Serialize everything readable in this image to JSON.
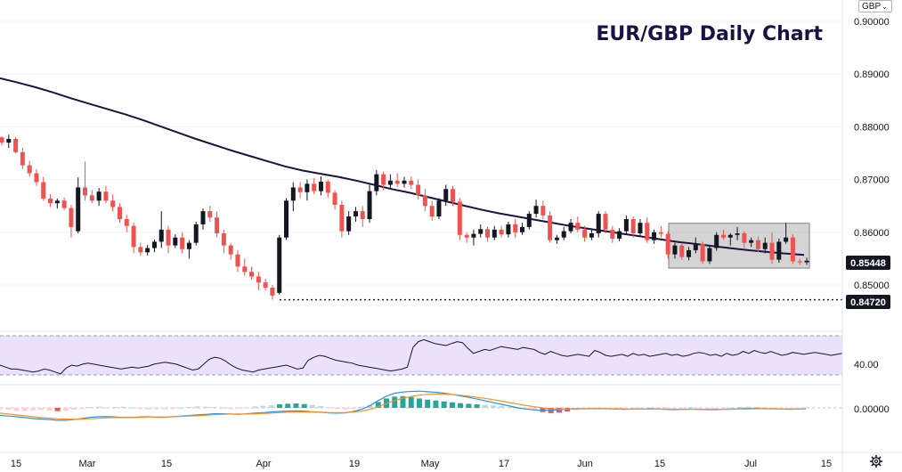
{
  "title": "EUR/GBP Daily Chart",
  "currency_select": "GBP",
  "chart_data": {
    "type": "candlestick",
    "title": "EUR/GBP Daily Chart",
    "y_axis": {
      "ticks": [
        "0.90000",
        "0.89000",
        "0.88000",
        "0.87000",
        "0.86000",
        "0.85000"
      ],
      "ylim": [
        0.8455,
        0.9015
      ]
    },
    "x_axis": {
      "labels": [
        "15",
        "Mar",
        "15",
        "Apr",
        "19",
        "May",
        "17",
        "Jun",
        "15",
        "Jul",
        "15"
      ]
    },
    "price_labels": {
      "last": "0.85448",
      "support": "0.84720"
    },
    "moving_average": {
      "name": "",
      "color": "#1f1240",
      "points": [
        [
          0,
          0.8892
        ],
        [
          20,
          0.8884
        ],
        [
          40,
          0.8875
        ],
        [
          60,
          0.8865
        ],
        [
          80,
          0.8854
        ],
        [
          100,
          0.8844
        ],
        [
          120,
          0.8834
        ],
        [
          140,
          0.8824
        ],
        [
          160,
          0.8813
        ],
        [
          180,
          0.8801
        ],
        [
          200,
          0.8789
        ],
        [
          220,
          0.8777
        ],
        [
          240,
          0.8766
        ],
        [
          260,
          0.8755
        ],
        [
          280,
          0.8745
        ],
        [
          300,
          0.8735
        ],
        [
          320,
          0.8725
        ],
        [
          340,
          0.8717
        ],
        [
          360,
          0.8711
        ],
        [
          380,
          0.8705
        ],
        [
          400,
          0.8698
        ],
        [
          420,
          0.869
        ],
        [
          440,
          0.8682
        ],
        [
          460,
          0.8675
        ],
        [
          480,
          0.8667
        ],
        [
          500,
          0.8659
        ],
        [
          520,
          0.8651
        ],
        [
          540,
          0.8643
        ],
        [
          560,
          0.8636
        ],
        [
          580,
          0.863
        ],
        [
          600,
          0.8624
        ],
        [
          620,
          0.8618
        ],
        [
          640,
          0.8612
        ],
        [
          660,
          0.8607
        ],
        [
          680,
          0.8602
        ],
        [
          700,
          0.8597
        ],
        [
          720,
          0.8592
        ],
        [
          740,
          0.8587
        ],
        [
          760,
          0.8582
        ],
        [
          780,
          0.8578
        ],
        [
          800,
          0.8574
        ],
        [
          820,
          0.857
        ],
        [
          840,
          0.8566
        ],
        [
          860,
          0.8563
        ],
        [
          880,
          0.856
        ],
        [
          903,
          0.8557
        ]
      ]
    },
    "candles": [
      [
        0.878,
        0.8782,
        0.8765,
        0.877
      ],
      [
        0.877,
        0.8785,
        0.876,
        0.8777
      ],
      [
        0.8777,
        0.878,
        0.875,
        0.8752
      ],
      [
        0.8752,
        0.876,
        0.872,
        0.8727
      ],
      [
        0.8727,
        0.8735,
        0.8705,
        0.8712
      ],
      [
        0.8712,
        0.872,
        0.8688,
        0.8695
      ],
      [
        0.8695,
        0.8705,
        0.866,
        0.8664
      ],
      [
        0.8664,
        0.8672,
        0.8648,
        0.8655
      ],
      [
        0.8655,
        0.8664,
        0.8645,
        0.866
      ],
      [
        0.866,
        0.8666,
        0.8642,
        0.8646
      ],
      [
        0.8646,
        0.8652,
        0.859,
        0.861
      ],
      [
        0.8602,
        0.8704,
        0.8598,
        0.8685
      ],
      [
        0.8685,
        0.8734,
        0.866,
        0.867
      ],
      [
        0.867,
        0.868,
        0.8655,
        0.866
      ],
      [
        0.866,
        0.8684,
        0.865,
        0.8677
      ],
      [
        0.8677,
        0.8688,
        0.8655,
        0.866
      ],
      [
        0.866,
        0.8672,
        0.864,
        0.8648
      ],
      [
        0.8648,
        0.8655,
        0.8618,
        0.8625
      ],
      [
        0.8625,
        0.8633,
        0.86,
        0.8612
      ],
      [
        0.8612,
        0.8618,
        0.856,
        0.8572
      ],
      [
        0.8572,
        0.858,
        0.8555,
        0.8562
      ],
      [
        0.8562,
        0.8576,
        0.8556,
        0.857
      ],
      [
        0.857,
        0.8586,
        0.8562,
        0.8582
      ],
      [
        0.8582,
        0.864,
        0.857,
        0.8605
      ],
      [
        0.8605,
        0.8612,
        0.856,
        0.8575
      ],
      [
        0.8575,
        0.8596,
        0.857,
        0.859
      ],
      [
        0.859,
        0.86,
        0.856,
        0.8568
      ],
      [
        0.8568,
        0.8585,
        0.855,
        0.858
      ],
      [
        0.858,
        0.862,
        0.8575,
        0.8615
      ],
      [
        0.8615,
        0.8645,
        0.8605,
        0.864
      ],
      [
        0.864,
        0.865,
        0.862,
        0.8628
      ],
      [
        0.8628,
        0.864,
        0.859,
        0.8598
      ],
      [
        0.8598,
        0.8605,
        0.856,
        0.8575
      ],
      [
        0.8575,
        0.858,
        0.8548,
        0.8558
      ],
      [
        0.8558,
        0.8566,
        0.8525,
        0.8535
      ],
      [
        0.8535,
        0.855,
        0.8518,
        0.8525
      ],
      [
        0.8525,
        0.8535,
        0.851,
        0.8516
      ],
      [
        0.8516,
        0.8525,
        0.849,
        0.8505
      ],
      [
        0.8505,
        0.8512,
        0.849,
        0.8495
      ],
      [
        0.8495,
        0.85,
        0.8472,
        0.848
      ],
      [
        0.8485,
        0.8595,
        0.8482,
        0.859
      ],
      [
        0.859,
        0.8665,
        0.8585,
        0.866
      ],
      [
        0.866,
        0.8695,
        0.864,
        0.8685
      ],
      [
        0.8685,
        0.8695,
        0.8665,
        0.8676
      ],
      [
        0.8676,
        0.87,
        0.866,
        0.8692
      ],
      [
        0.8692,
        0.8703,
        0.8672,
        0.8678
      ],
      [
        0.8678,
        0.8706,
        0.867,
        0.8696
      ],
      [
        0.8696,
        0.87,
        0.8665,
        0.8675
      ],
      [
        0.8675,
        0.868,
        0.8643,
        0.8652
      ],
      [
        0.8652,
        0.866,
        0.859,
        0.8602
      ],
      [
        0.8602,
        0.864,
        0.8595,
        0.863
      ],
      [
        0.863,
        0.8648,
        0.862,
        0.864
      ],
      [
        0.864,
        0.865,
        0.861,
        0.8625
      ],
      [
        0.8625,
        0.869,
        0.8618,
        0.8678
      ],
      [
        0.8678,
        0.8718,
        0.867,
        0.871
      ],
      [
        0.871,
        0.8715,
        0.868,
        0.869
      ],
      [
        0.869,
        0.871,
        0.8683,
        0.8698
      ],
      [
        0.8698,
        0.8712,
        0.8686,
        0.8692
      ],
      [
        0.8692,
        0.8705,
        0.8685,
        0.8698
      ],
      [
        0.8698,
        0.8706,
        0.8682,
        0.869
      ],
      [
        0.869,
        0.87,
        0.8662,
        0.867
      ],
      [
        0.867,
        0.8682,
        0.864,
        0.865
      ],
      [
        0.865,
        0.866,
        0.8622,
        0.863
      ],
      [
        0.863,
        0.8665,
        0.8625,
        0.866
      ],
      [
        0.866,
        0.869,
        0.865,
        0.8682
      ],
      [
        0.8682,
        0.8688,
        0.865,
        0.8658
      ],
      [
        0.8658,
        0.8665,
        0.8585,
        0.8595
      ],
      [
        0.8595,
        0.86,
        0.858,
        0.859
      ],
      [
        0.859,
        0.8605,
        0.8575,
        0.8597
      ],
      [
        0.8597,
        0.8615,
        0.859,
        0.8606
      ],
      [
        0.8606,
        0.861,
        0.8582,
        0.859
      ],
      [
        0.859,
        0.8612,
        0.8585,
        0.8605
      ],
      [
        0.8605,
        0.8612,
        0.859,
        0.8596
      ],
      [
        0.8596,
        0.862,
        0.859,
        0.8615
      ],
      [
        0.8615,
        0.8625,
        0.859,
        0.86
      ],
      [
        0.86,
        0.8618,
        0.8595,
        0.861
      ],
      [
        0.861,
        0.864,
        0.8605,
        0.8635
      ],
      [
        0.8635,
        0.8662,
        0.8628,
        0.865
      ],
      [
        0.865,
        0.866,
        0.8625,
        0.8632
      ],
      [
        0.8632,
        0.864,
        0.858,
        0.8585
      ],
      [
        0.8585,
        0.8595,
        0.8578,
        0.859
      ],
      [
        0.859,
        0.861,
        0.8585,
        0.8602
      ],
      [
        0.8602,
        0.8625,
        0.8598,
        0.8618
      ],
      [
        0.8618,
        0.863,
        0.86,
        0.8605
      ],
      [
        0.8605,
        0.8612,
        0.8582,
        0.859
      ],
      [
        0.859,
        0.8605,
        0.8585,
        0.8598
      ],
      [
        0.8598,
        0.864,
        0.859,
        0.8635
      ],
      [
        0.8635,
        0.864,
        0.8598,
        0.8605
      ],
      [
        0.8605,
        0.8612,
        0.858,
        0.8588
      ],
      [
        0.8588,
        0.8608,
        0.8583,
        0.8602
      ],
      [
        0.8602,
        0.8632,
        0.8596,
        0.8625
      ],
      [
        0.8625,
        0.863,
        0.859,
        0.8598
      ],
      [
        0.8598,
        0.8625,
        0.8592,
        0.8618
      ],
      [
        0.8618,
        0.8628,
        0.858,
        0.8585
      ],
      [
        0.8585,
        0.8605,
        0.8578,
        0.86
      ],
      [
        0.86,
        0.8612,
        0.859,
        0.8597
      ],
      [
        0.8597,
        0.8602,
        0.855,
        0.8558
      ],
      [
        0.8558,
        0.858,
        0.855,
        0.8575
      ],
      [
        0.8575,
        0.858,
        0.8548,
        0.8553
      ],
      [
        0.8553,
        0.8572,
        0.8547,
        0.8566
      ],
      [
        0.8566,
        0.859,
        0.856,
        0.8578
      ],
      [
        0.8578,
        0.8582,
        0.854,
        0.8545
      ],
      [
        0.8545,
        0.8575,
        0.854,
        0.857
      ],
      [
        0.857,
        0.86,
        0.8565,
        0.8595
      ],
      [
        0.8595,
        0.8605,
        0.8586,
        0.859
      ],
      [
        0.859,
        0.8598,
        0.8575,
        0.8595
      ],
      [
        0.8595,
        0.861,
        0.8585,
        0.8598
      ],
      [
        0.8598,
        0.8602,
        0.857,
        0.858
      ],
      [
        0.858,
        0.859,
        0.8572,
        0.8585
      ],
      [
        0.8585,
        0.8592,
        0.8562,
        0.8568
      ],
      [
        0.8568,
        0.859,
        0.856,
        0.858
      ],
      [
        0.858,
        0.86,
        0.854,
        0.8548
      ],
      [
        0.8548,
        0.8588,
        0.8542,
        0.8582
      ],
      [
        0.8582,
        0.8618,
        0.8578,
        0.859
      ],
      [
        0.859,
        0.8596,
        0.854,
        0.8545
      ],
      [
        0.8545,
        0.855,
        0.8538,
        0.8543
      ],
      [
        0.8543,
        0.8552,
        0.8538,
        0.8546
      ]
    ],
    "resistance_box": {
      "y_top": 0.8617,
      "y_bottom": 0.8532,
      "x_start": 751,
      "x_end": 909
    },
    "rsi": {
      "label": "40.00",
      "band": [
        30,
        70
      ],
      "values": [
        40,
        38,
        36,
        36,
        35,
        34,
        33,
        34,
        36,
        35,
        33,
        31,
        37,
        40,
        39,
        41,
        42,
        41,
        40,
        39,
        38,
        37,
        36,
        37,
        38,
        37,
        38,
        39,
        41,
        42,
        43,
        42,
        41,
        39,
        37,
        35,
        36,
        41,
        46,
        48,
        47,
        44,
        40,
        37,
        35,
        34,
        33,
        35,
        36,
        37,
        38,
        39,
        40,
        38,
        36,
        37,
        45,
        48,
        50,
        49,
        47,
        45,
        44,
        43,
        42,
        40,
        39,
        38,
        37,
        36,
        35,
        34,
        35,
        36,
        38,
        58,
        64,
        66,
        64,
        62,
        61,
        60,
        62,
        64,
        63,
        57,
        52,
        54,
        56,
        55,
        57,
        59,
        58,
        57,
        56,
        58,
        57,
        56,
        53,
        51,
        54,
        52,
        50,
        49,
        50,
        51,
        50,
        49,
        55,
        53,
        50,
        49,
        50,
        51,
        49,
        52,
        50,
        51,
        49,
        50,
        51,
        52,
        50,
        51,
        49,
        50,
        52,
        53,
        52,
        50,
        51,
        49,
        52,
        50,
        51,
        54,
        52,
        55,
        53,
        52,
        54,
        52,
        50,
        51,
        53,
        52,
        51,
        52,
        53,
        52,
        51,
        50,
        51,
        52
      ]
    },
    "macd": {
      "label": "0.00000",
      "histogram": [
        -0.4,
        -0.6,
        -0.9,
        -1.0,
        -0.8,
        -0.7,
        -0.9,
        -1.1,
        -1.0,
        -0.6,
        -0.2,
        0.3,
        0.4,
        0.2,
        0.3,
        0.4,
        0.2,
        -0.2,
        -0.5,
        -0.4,
        -0.3,
        -0.1,
        0.1,
        0.3,
        0.5,
        0.4,
        0.3,
        0.1,
        -0.1,
        -0.2,
        0.2,
        0.5,
        0.7,
        0.9,
        1.2,
        1.4,
        1.5,
        1.3,
        1.0,
        0.6,
        0.2,
        -0.3,
        -0.5,
        -0.2,
        0.4,
        1.0,
        2.0,
        3.2,
        3.8,
        4.0,
        3.7,
        3.2,
        2.8,
        2.5,
        2.2,
        1.9,
        1.6,
        1.4,
        1.2,
        1.0,
        0.8,
        0.6,
        0.3,
        -0.1,
        -0.5,
        -0.9,
        -1.4,
        -1.8,
        -1.6,
        -1.2,
        -0.8,
        -0.5,
        -0.3,
        -0.2,
        -0.4,
        -0.5,
        -0.3,
        -0.2,
        -0.1,
        0.1,
        -0.2,
        -0.4,
        -0.2,
        -0.1,
        0.2,
        -0.1,
        -0.3,
        -0.4,
        -0.2,
        0.1,
        0.3,
        0.4,
        0.3,
        0.2,
        0.1,
        -0.2,
        -0.3,
        -0.1,
        0.2
      ],
      "line1": [
        -2.5,
        -2.8,
        -3.0,
        -3.3,
        -3.6,
        -3.8,
        -4.0,
        -4.2,
        -4.2,
        -4.0,
        -3.6,
        -3.2,
        -3.0,
        -3.0,
        -3.1,
        -3.2,
        -3.2,
        -3.1,
        -3.0,
        -3.2,
        -3.2,
        -3.0,
        -2.8,
        -2.6,
        -2.4,
        -2.2,
        -2.0,
        -2.0,
        -2.1,
        -2.2,
        -2.0,
        -1.8,
        -1.6,
        -1.4,
        -1.2,
        -1.1,
        -1.0,
        -1.1,
        -1.3,
        -1.5,
        -1.7,
        -1.8,
        -1.7,
        -1.2,
        -0.5,
        0.8,
        2.5,
        4.0,
        5.0,
        5.4,
        5.6,
        5.7,
        5.5,
        5.3,
        5.0,
        4.6,
        4.1,
        3.6,
        3.0,
        2.4,
        1.8,
        1.2,
        0.6,
        0.0,
        -0.4,
        -0.7,
        -0.9,
        -0.8,
        -0.6,
        -0.4,
        -0.3,
        -0.3,
        -0.2,
        -0.2,
        -0.3,
        -0.4,
        -0.5,
        -0.4,
        -0.4,
        -0.3,
        -0.4,
        -0.5,
        -0.6,
        -0.5,
        -0.4,
        -0.5,
        -0.6,
        -0.6,
        -0.5,
        -0.4,
        -0.3,
        -0.2,
        -0.2,
        -0.3,
        -0.3,
        -0.4,
        -0.5,
        -0.4,
        -0.4
      ],
      "line2": [
        -1.8,
        -2.1,
        -2.4,
        -2.7,
        -3.0,
        -3.3,
        -3.5,
        -3.7,
        -3.8,
        -3.9,
        -3.8,
        -3.7,
        -3.5,
        -3.4,
        -3.3,
        -3.3,
        -3.3,
        -3.2,
        -3.1,
        -3.1,
        -3.1,
        -3.0,
        -2.9,
        -2.8,
        -2.7,
        -2.5,
        -2.3,
        -2.2,
        -2.1,
        -2.1,
        -2.1,
        -2.0,
        -1.9,
        -1.8,
        -1.6,
        -1.5,
        -1.4,
        -1.4,
        -1.4,
        -1.5,
        -1.6,
        -1.6,
        -1.6,
        -1.4,
        -1.1,
        -0.5,
        0.4,
        1.5,
        2.5,
        3.3,
        3.9,
        4.3,
        4.6,
        4.7,
        4.7,
        4.6,
        4.3,
        4.0,
        3.6,
        3.2,
        2.8,
        2.3,
        1.8,
        1.3,
        0.8,
        0.4,
        0.0,
        -0.3,
        -0.4,
        -0.4,
        -0.4,
        -0.3,
        -0.3,
        -0.3,
        -0.3,
        -0.3,
        -0.4,
        -0.4,
        -0.4,
        -0.4,
        -0.4,
        -0.4,
        -0.5,
        -0.5,
        -0.5,
        -0.5,
        -0.5,
        -0.5,
        -0.5,
        -0.5,
        -0.4,
        -0.4,
        -0.3,
        -0.3,
        -0.3,
        -0.4,
        -0.4,
        -0.4,
        -0.4
      ]
    }
  }
}
